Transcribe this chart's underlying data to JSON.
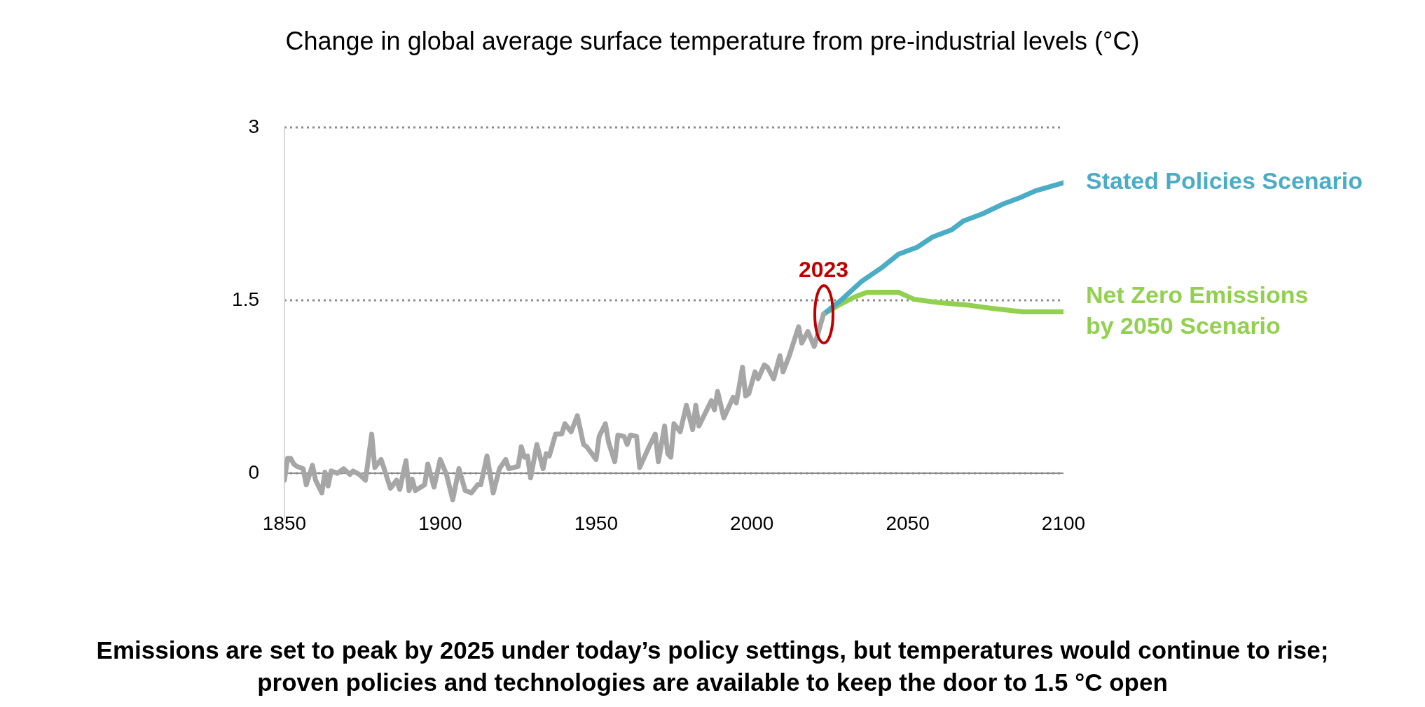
{
  "chart_data": {
    "type": "line",
    "title": "Change in global average surface temperature from pre-industrial levels (°C)",
    "xlim": [
      1850,
      2100
    ],
    "xticks": [
      1850,
      1900,
      1950,
      2000,
      2050,
      2100
    ],
    "ylim": [
      -0.4,
      3
    ],
    "yticks": [
      0,
      1.5,
      3
    ],
    "grid": "y",
    "legend": false,
    "marker": "none",
    "line_style": "solid",
    "series": [
      {
        "color": "#a6a6a6",
        "x": [
          1850,
          1851,
          1852,
          1853,
          1854,
          1856,
          1857,
          1859,
          1860,
          1862,
          1863,
          1864,
          1865,
          1867,
          1869,
          1871,
          1872,
          1874,
          1876,
          1878,
          1879,
          1881,
          1882,
          1884,
          1886,
          1887,
          1889,
          1890,
          1891,
          1892,
          1895,
          1896,
          1898,
          1900,
          1902,
          1904,
          1906,
          1908,
          1910,
          1912,
          1913,
          1915,
          1917,
          1919,
          1921,
          1922,
          1925,
          1926,
          1927,
          1928,
          1929,
          1931,
          1933,
          1934,
          1935,
          1937,
          1939,
          1940,
          1942,
          1944,
          1946,
          1947,
          1950,
          1951,
          1953,
          1954,
          1956,
          1957,
          1959,
          1960,
          1961,
          1963,
          1964,
          1966,
          1967,
          1969,
          1970,
          1972,
          1973,
          1974,
          1975,
          1977,
          1979,
          1981,
          1982,
          1983,
          1987,
          1988,
          1989,
          1991,
          1994,
          1995,
          1997,
          1998,
          1999,
          2001,
          2002,
          2004,
          2005,
          2007,
          2009,
          2010,
          2012,
          2015,
          2016,
          2018,
          2020,
          2023
        ],
        "values": [
          -0.06,
          0.13,
          0.13,
          0.08,
          0.06,
          0.04,
          -0.1,
          0.07,
          -0.06,
          -0.17,
          0.01,
          -0.11,
          0.02,
          0.0,
          0.04,
          -0.01,
          0.02,
          -0.01,
          -0.06,
          0.34,
          0.05,
          0.12,
          0.04,
          -0.13,
          -0.06,
          -0.14,
          0.11,
          -0.15,
          -0.05,
          -0.15,
          -0.1,
          0.08,
          -0.12,
          0.12,
          -0.01,
          -0.23,
          0.04,
          -0.15,
          -0.17,
          -0.1,
          -0.1,
          0.15,
          -0.17,
          0.04,
          0.12,
          0.04,
          0.06,
          0.23,
          0.14,
          0.15,
          -0.04,
          0.25,
          0.04,
          0.17,
          0.15,
          0.34,
          0.34,
          0.43,
          0.36,
          0.5,
          0.25,
          0.23,
          0.12,
          0.32,
          0.43,
          0.27,
          0.1,
          0.33,
          0.32,
          0.25,
          0.33,
          0.32,
          0.05,
          0.17,
          0.23,
          0.34,
          0.1,
          0.41,
          0.17,
          0.14,
          0.43,
          0.36,
          0.59,
          0.38,
          0.59,
          0.41,
          0.63,
          0.55,
          0.71,
          0.48,
          0.66,
          0.61,
          0.92,
          0.67,
          0.69,
          0.88,
          0.82,
          0.94,
          0.92,
          0.82,
          1.02,
          0.88,
          1.02,
          1.27,
          1.13,
          1.23,
          1.1,
          1.38
        ]
      },
      {
        "name": "Stated Policies Scenario",
        "color": "#4bacc6",
        "x": [
          2023,
          2029,
          2035,
          2042,
          2047,
          2053,
          2058,
          2064,
          2068,
          2074,
          2081,
          2086,
          2091,
          2100
        ],
        "values": [
          1.38,
          1.51,
          1.66,
          1.79,
          1.9,
          1.96,
          2.05,
          2.11,
          2.19,
          2.25,
          2.34,
          2.39,
          2.45,
          2.52
        ]
      },
      {
        "name": "Net Zero Emissions\nby 2050 Scenario",
        "color": "#92d050",
        "x": [
          2023,
          2028,
          2033,
          2037,
          2047,
          2052,
          2060,
          2069,
          2077,
          2087,
          2100
        ],
        "values": [
          1.38,
          1.46,
          1.53,
          1.57,
          1.57,
          1.51,
          1.48,
          1.46,
          1.43,
          1.4,
          1.4
        ]
      }
    ],
    "annotations": [
      "2023",
      "Emissions are set to peak by 2025 under today’s policy settings, but temperatures would continue to rise; proven policies and technologies are available to keep the door to 1.5 °C open"
    ]
  }
}
